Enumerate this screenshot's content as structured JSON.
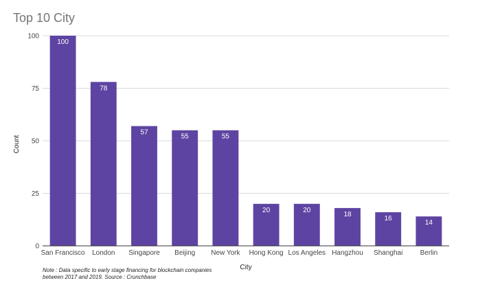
{
  "chart_data": {
    "type": "bar",
    "title": "Top 10 City",
    "xlabel": "City",
    "ylabel": "Count",
    "ylim": [
      0,
      100
    ],
    "yticks": [
      0,
      25,
      50,
      75,
      100
    ],
    "grid": true,
    "categories": [
      "San Francisco",
      "London",
      "Singapore",
      "Beijing",
      "New York",
      "Hong Kong",
      "Los Angeles",
      "Hangzhou",
      "Shanghai",
      "Berlin"
    ],
    "values": [
      100,
      78,
      57,
      55,
      55,
      20,
      20,
      18,
      16,
      14
    ],
    "bar_color": "#5e44a2"
  },
  "note": {
    "line1": "Note : Data specific to early stage financing for blockchain companies",
    "line2": "between 2017 and 2019. Source : Crunchbase"
  }
}
